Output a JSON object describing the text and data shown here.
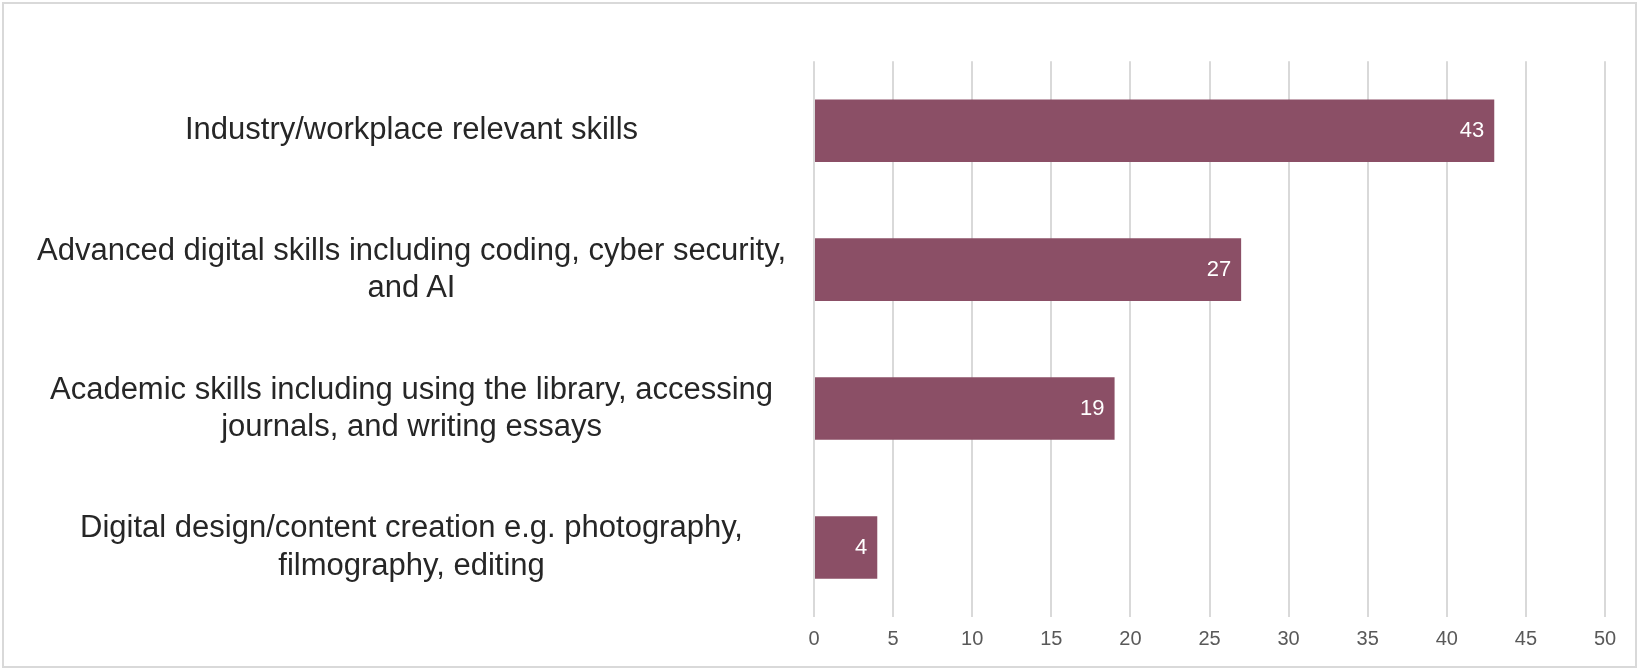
{
  "chart_data": {
    "type": "bar",
    "orientation": "horizontal",
    "categories": [
      "Industry/workplace relevant skills",
      "Advanced digital skills including coding, cyber security, and AI",
      "Academic skills including using the library, accessing journals, and writing essays",
      "Digital design/content creation e.g. photography, filmography, editing"
    ],
    "values": [
      43,
      27,
      19,
      4
    ],
    "color": "#8b4f66",
    "xlim": [
      0,
      50
    ],
    "xticks": [
      0,
      5,
      10,
      15,
      20,
      25,
      30,
      35,
      40,
      45,
      50
    ],
    "grid": "x",
    "data_labels": true,
    "legend": false
  }
}
